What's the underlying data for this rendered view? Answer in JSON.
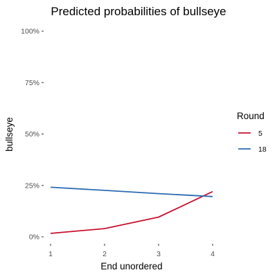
{
  "chart_data": {
    "type": "line",
    "title": "Predicted probabilities of bullseye",
    "xlabel": "End unordered",
    "ylabel": "bullseye",
    "x": [
      1,
      2,
      3,
      4
    ],
    "x_tick_labels": [
      "1",
      "2",
      "3",
      "4"
    ],
    "xlim": [
      1,
      4
    ],
    "ylim": [
      0,
      1
    ],
    "y_ticks": [
      0,
      0.25,
      0.5,
      0.75,
      1
    ],
    "y_tick_labels": [
      "0%",
      "25%",
      "50%",
      "75%",
      "100%"
    ],
    "grid": false,
    "legend": {
      "title": "Round",
      "position": "right"
    },
    "series": [
      {
        "name": "5",
        "color": "#C8102E",
        "values": [
          0.017,
          0.04,
          0.096,
          0.22
        ]
      },
      {
        "name": "18",
        "color": "#2B6CB0",
        "values": [
          0.241,
          0.226,
          0.21,
          0.196
        ]
      }
    ]
  }
}
